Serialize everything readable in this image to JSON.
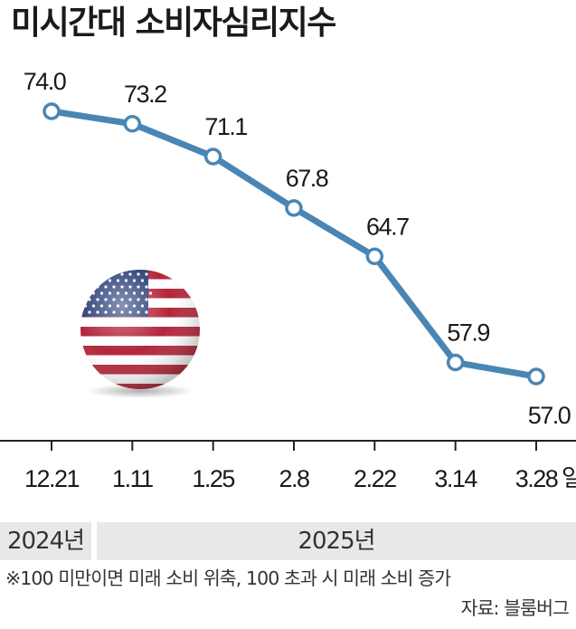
{
  "title": "미시간대 소비자심리지수",
  "chart_data": {
    "type": "line",
    "title": "미시간대 소비자심리지수",
    "categories": [
      "12.21",
      "1.11",
      "1.25",
      "2.8",
      "2.22",
      "3.14",
      "3.28"
    ],
    "values": [
      74.0,
      73.2,
      71.1,
      67.8,
      64.7,
      57.9,
      57.0
    ],
    "value_labels": [
      "74.0",
      "73.2",
      "71.1",
      "67.8",
      "64.7",
      "57.9",
      "57.0"
    ],
    "x_unit": "일",
    "line_color": "#4a86b3",
    "grid": false
  },
  "years": {
    "left": "2024년",
    "right": "2025년"
  },
  "footnote": "※100 미만이면 미래 소비 위축, 100 초과 시 미래 소비 증가",
  "source": "자료: 블룸버그",
  "flag_icon": "us-flag-icon"
}
